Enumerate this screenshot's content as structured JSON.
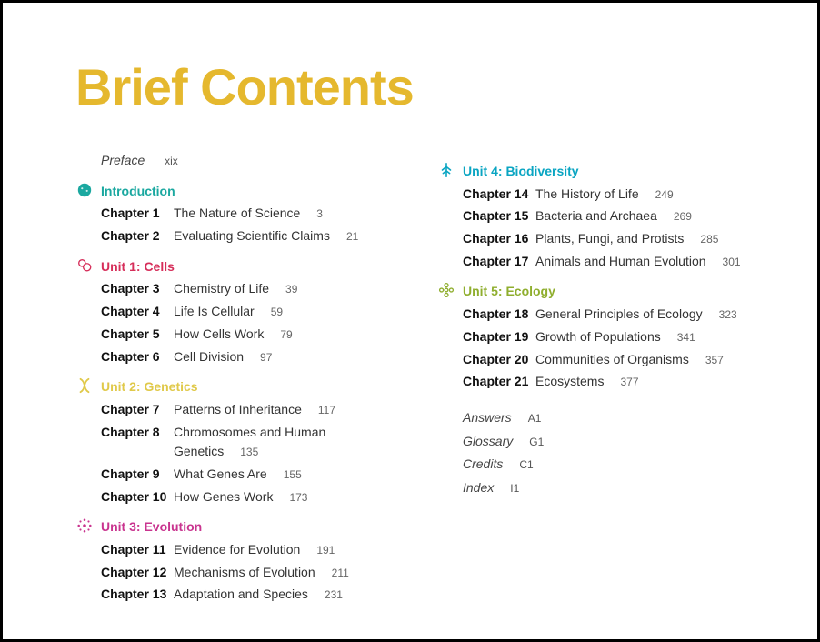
{
  "title": "Brief Contents",
  "title_color": "#e5b82e",
  "preface": {
    "label": "Preface",
    "page": "xix"
  },
  "units": [
    {
      "col": 0,
      "name": "Introduction",
      "color": "#1ba8a0",
      "icon": "circle-dots",
      "icon_color": "#1ba8a0",
      "chapters": [
        {
          "n": "Chapter 1",
          "t": "The Nature of Science",
          "p": "3"
        },
        {
          "n": "Chapter 2",
          "t": "Evaluating Scientific Claims",
          "p": "21"
        }
      ]
    },
    {
      "col": 0,
      "name": "Unit 1: Cells",
      "color": "#d62e5a",
      "icon": "cells",
      "icon_color": "#d62e5a",
      "chapters": [
        {
          "n": "Chapter 3",
          "t": "Chemistry of Life",
          "p": "39"
        },
        {
          "n": "Chapter 4",
          "t": "Life Is Cellular",
          "p": "59"
        },
        {
          "n": "Chapter 5",
          "t": "How Cells Work",
          "p": "79"
        },
        {
          "n": "Chapter 6",
          "t": "Cell Division",
          "p": "97"
        }
      ]
    },
    {
      "col": 0,
      "name": "Unit 2: Genetics",
      "color": "#e0c94a",
      "icon": "dna",
      "icon_color": "#e0c94a",
      "chapters": [
        {
          "n": "Chapter 7",
          "t": "Patterns of Inheritance",
          "p": "117"
        },
        {
          "n": "Chapter 8",
          "t": "Chromosomes and Human Genetics",
          "p": "135",
          "wrap": true
        },
        {
          "n": "Chapter 9",
          "t": "What Genes Are",
          "p": "155"
        },
        {
          "n": "Chapter 10",
          "t": "How Genes Work",
          "p": "173"
        }
      ]
    },
    {
      "col": 0,
      "name": "Unit 3: Evolution",
      "color": "#c9348f",
      "icon": "burst",
      "icon_color": "#c9348f",
      "chapters": [
        {
          "n": "Chapter 11",
          "t": "Evidence for Evolution",
          "p": "191"
        },
        {
          "n": "Chapter 12",
          "t": "Mechanisms of Evolution",
          "p": "211"
        },
        {
          "n": "Chapter 13",
          "t": "Adaptation and Species",
          "p": "231"
        }
      ]
    },
    {
      "col": 1,
      "name": "Unit 4: Biodiversity",
      "color": "#0aa5c2",
      "icon": "leaf",
      "icon_color": "#0aa5c2",
      "chapters": [
        {
          "n": "Chapter 14",
          "t": "The History of Life",
          "p": "249"
        },
        {
          "n": "Chapter 15",
          "t": "Bacteria and Archaea",
          "p": "269"
        },
        {
          "n": "Chapter 16",
          "t": "Plants, Fungi, and Protists",
          "p": "285"
        },
        {
          "n": "Chapter 17",
          "t": "Animals and Human Evolution",
          "p": "301"
        }
      ]
    },
    {
      "col": 1,
      "name": "Unit 5: Ecology",
      "color": "#8fae2e",
      "icon": "flower",
      "icon_color": "#8fae2e",
      "chapters": [
        {
          "n": "Chapter 18",
          "t": "General Principles of Ecology",
          "p": "323"
        },
        {
          "n": "Chapter 19",
          "t": "Growth of Populations",
          "p": "341"
        },
        {
          "n": "Chapter 20",
          "t": "Communities of Organisms",
          "p": "357"
        },
        {
          "n": "Chapter 21",
          "t": "Ecosystems",
          "p": "377"
        }
      ]
    }
  ],
  "backmatter": [
    {
      "label": "Answers",
      "page": "A1"
    },
    {
      "label": "Glossary",
      "page": "G1"
    },
    {
      "label": "Credits",
      "page": "C1"
    },
    {
      "label": "Index",
      "page": "I1"
    }
  ]
}
